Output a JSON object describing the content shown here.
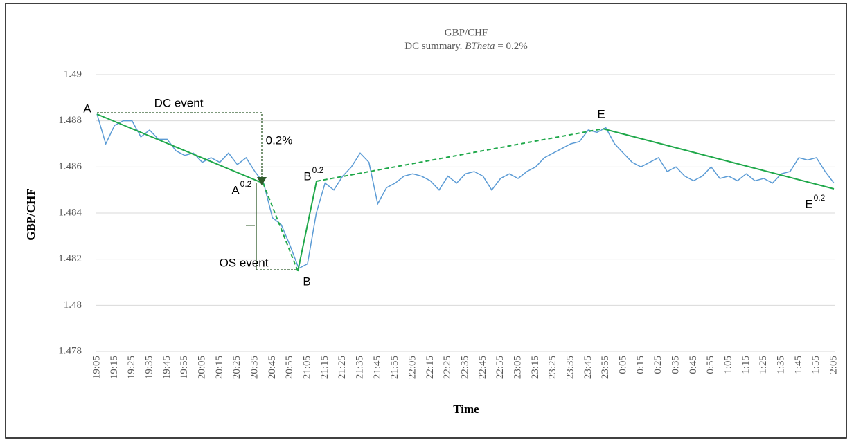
{
  "chart_data": {
    "type": "line",
    "title": "GBP/CHF",
    "subtitle": [
      "DC summary. ",
      "BTheta",
      " = 0.2%"
    ],
    "x_label": "Time",
    "y_label": "GBP/CHF",
    "categories": [
      "19:05",
      null,
      "19:15",
      null,
      "19:25",
      null,
      "19:35",
      null,
      "19:45",
      null,
      "19:55",
      null,
      "20:05",
      null,
      "20:15",
      null,
      "20:25",
      null,
      "20:35",
      null,
      "20:45",
      null,
      "20:55",
      null,
      "21:05",
      null,
      "21:15",
      null,
      "21:25",
      null,
      "21:35",
      null,
      "21:45",
      null,
      "21:55",
      null,
      "22:05",
      null,
      "22:15",
      null,
      "22:25",
      null,
      "22:35",
      null,
      "22:45",
      null,
      "22:55",
      null,
      "23:05",
      null,
      "23:15",
      null,
      "23:25",
      null,
      "23:35",
      null,
      "23:45",
      null,
      "23:55",
      null,
      "0:05",
      null,
      "0:15",
      null,
      "0:25",
      null,
      "0:35",
      null,
      "0:45",
      null,
      "0:55",
      null,
      "1:05",
      null,
      "1:15",
      null,
      "1:25",
      null,
      "1:35",
      null,
      "1:45",
      null,
      "1:55",
      null,
      "2:05"
    ],
    "series": [
      {
        "name": "GBP/CHF",
        "color": "#5b9bd5",
        "values": [
          1.4883,
          1.487,
          1.4878,
          1.488,
          1.488,
          1.4873,
          1.4876,
          1.4872,
          1.4872,
          1.4867,
          1.4865,
          1.4866,
          1.4862,
          1.4864,
          1.4862,
          1.4866,
          1.4861,
          1.4864,
          1.4858,
          1.4853,
          1.4838,
          1.4835,
          1.4826,
          1.4816,
          1.4818,
          1.484,
          1.4853,
          1.485,
          1.4856,
          1.486,
          1.4866,
          1.4862,
          1.4844,
          1.4851,
          1.4853,
          1.4856,
          1.4857,
          1.4856,
          1.4854,
          1.485,
          1.4856,
          1.4853,
          1.4857,
          1.4858,
          1.4856,
          1.485,
          1.4855,
          1.4857,
          1.4855,
          1.4858,
          1.486,
          1.4864,
          1.4866,
          1.4868,
          1.487,
          1.4871,
          1.4876,
          1.4875,
          1.4877,
          1.487,
          1.4866,
          1.4862,
          1.486,
          1.4862,
          1.4864,
          1.4858,
          1.486,
          1.4856,
          1.4854,
          1.4856,
          1.486,
          1.4855,
          1.4856,
          1.4854,
          1.4857,
          1.4854,
          1.4855,
          1.4853,
          1.4857,
          1.4858,
          1.4864,
          1.4863,
          1.4864,
          1.4858,
          1.4853
        ]
      }
    ],
    "ylim": [
      1.478,
      1.49
    ],
    "yticks": [
      1.478,
      1.48,
      1.482,
      1.484,
      1.486,
      1.488,
      1.49
    ],
    "grid": true,
    "annotations": [
      {
        "text": "A"
      },
      {
        "text": "DC event"
      },
      {
        "text": "0.2%"
      },
      {
        "text": "A",
        "sup": "0.2"
      },
      {
        "text": "OS event"
      },
      {
        "text": "B"
      },
      {
        "text": "B",
        "sup": "0.2"
      },
      {
        "text": "E"
      },
      {
        "text": "E",
        "sup": "0.2"
      }
    ]
  }
}
